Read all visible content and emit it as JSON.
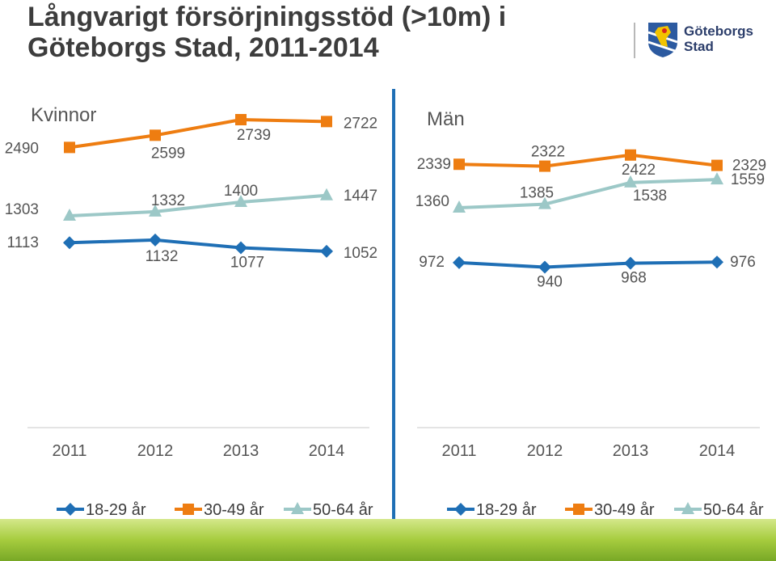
{
  "title": "Långvarigt försörjningsstöd (>10m) i Göteborgs Stad, 2011-2014",
  "logo": {
    "text_line1": "Göteborgs",
    "text_line2": "Stad"
  },
  "colors": {
    "18-29 år": "#1f6fb5",
    "30-49 år": "#ee7d11",
    "50-64 år": "#9cc8c7",
    "title": "#3d3d3d",
    "divider": "#1f6fb5"
  },
  "chart_data": [
    {
      "type": "line",
      "title": "Kvinnor",
      "categories": [
        "2011",
        "2012",
        "2013",
        "2014"
      ],
      "series": [
        {
          "name": "18-29 år",
          "marker": "diamond",
          "values": [
            1113,
            1132,
            1077,
            1052
          ]
        },
        {
          "name": "30-49 år",
          "marker": "square",
          "values": [
            2490,
            2599,
            2739,
            2722
          ]
        },
        {
          "name": "50-64 år",
          "marker": "triangle",
          "values": [
            1303,
            1332,
            1400,
            1447
          ]
        }
      ],
      "legend": "bottom"
    },
    {
      "type": "line",
      "title": "Män",
      "categories": [
        "2011",
        "2012",
        "2013",
        "2014"
      ],
      "series": [
        {
          "name": "18-29 år",
          "marker": "diamond",
          "values": [
            972,
            940,
            968,
            976
          ]
        },
        {
          "name": "30-49 år",
          "marker": "square",
          "values": [
            2339,
            2322,
            2422,
            2329
          ]
        },
        {
          "name": "50-64 år",
          "marker": "triangle",
          "values": [
            1360,
            1385,
            1538,
            1559
          ]
        }
      ],
      "legend": "bottom"
    }
  ]
}
